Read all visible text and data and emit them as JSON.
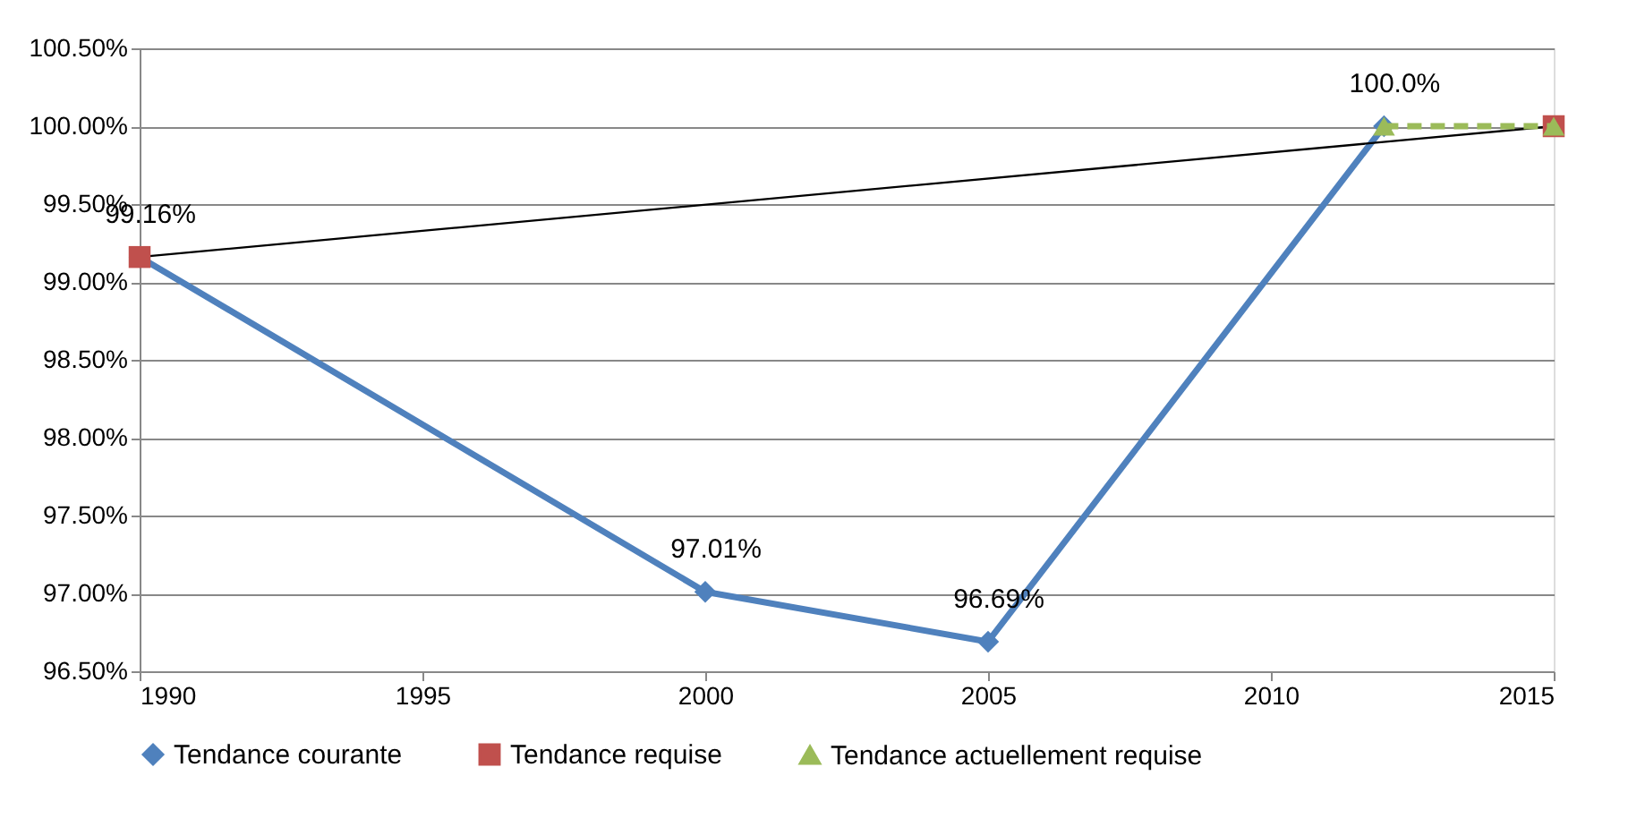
{
  "chart_data": {
    "type": "line",
    "xlim": [
      1990,
      2015
    ],
    "xticks": [
      1990,
      1995,
      2000,
      2005,
      2010,
      2015
    ],
    "ylim": [
      96.5,
      100.5
    ],
    "yticks": [
      {
        "value": 96.5,
        "label": "96.50%"
      },
      {
        "value": 97,
        "label": "97.00%"
      },
      {
        "value": 97.5,
        "label": "97.50%"
      },
      {
        "value": 98,
        "label": "98.00%"
      },
      {
        "value": 98.5,
        "label": "98.50%"
      },
      {
        "value": 99,
        "label": "99.00%"
      },
      {
        "value": 99.5,
        "label": "99.50%"
      },
      {
        "value": 100,
        "label": "100.00%"
      },
      {
        "value": 100.5,
        "label": "100.50%"
      }
    ],
    "grid": "y",
    "legend": "bottom",
    "series": [
      {
        "name": "Tendance courante",
        "color": "#4f81bd",
        "marker": "diamond",
        "line_style": "solid",
        "x": [
          1990,
          2000,
          2005,
          2012
        ],
        "values": [
          99.16,
          97.01,
          96.69,
          100.0
        ],
        "value_labels": [
          "99.16%",
          "97.01%",
          "96.69%",
          "100.0%"
        ]
      },
      {
        "type": "line",
        "color": "#000000",
        "marker": "none",
        "line_style": "solid",
        "x": [
          1990,
          2015
        ],
        "values": [
          99.16,
          100.0
        ]
      },
      {
        "name": "Tendance requise",
        "type": "scatter",
        "color": "#c0504d",
        "marker": "square",
        "x": [
          1990,
          2015
        ],
        "values": [
          99.16,
          100.0
        ]
      },
      {
        "name": "Tendance actuellement requise",
        "color": "#9bbb59",
        "marker": "triangle",
        "line_style": "dashed",
        "x": [
          2012,
          2015
        ],
        "values": [
          100.0,
          100.0
        ]
      }
    ]
  }
}
